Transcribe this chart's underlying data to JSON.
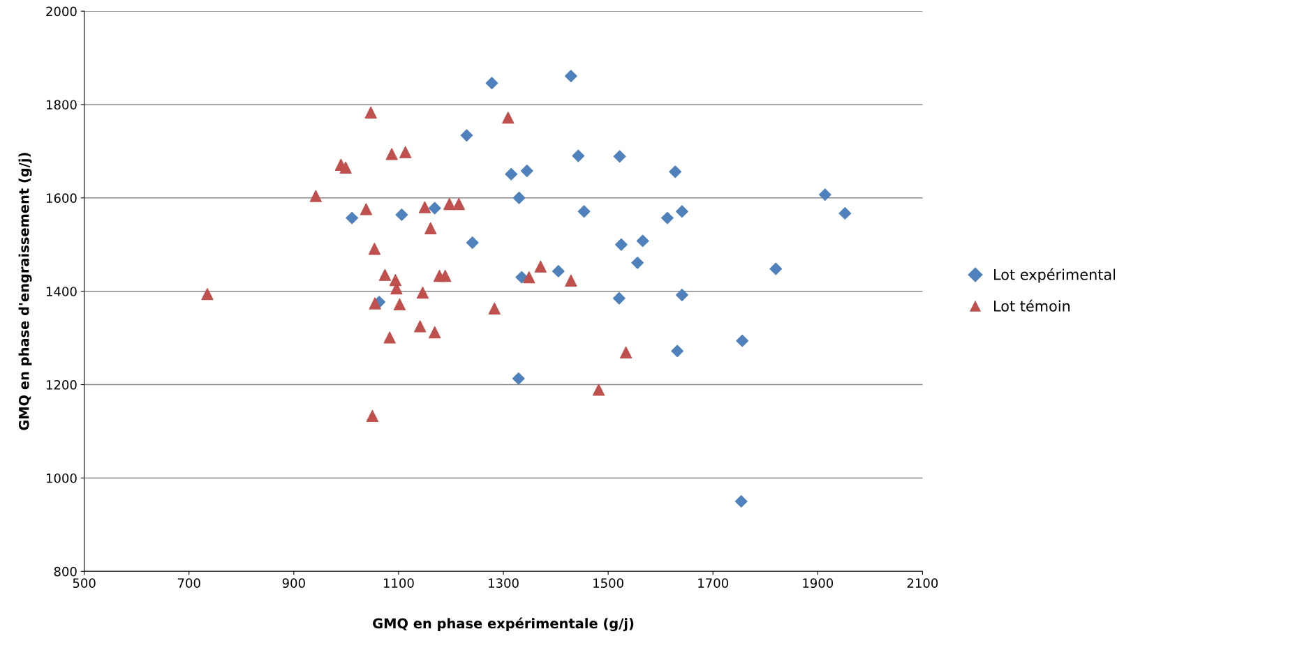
{
  "chart_data": {
    "type": "scatter",
    "xlabel": "GMQ en phase expérimentale (g/j)",
    "ylabel": "GMQ en phase d'engraissement (g/j)",
    "xlim": [
      500,
      2100
    ],
    "xticks": [
      500,
      700,
      900,
      1100,
      1300,
      1500,
      1700,
      1900,
      2100
    ],
    "ylim": [
      800,
      2000
    ],
    "yticks": [
      800,
      1000,
      1200,
      1400,
      1600,
      1800,
      2000
    ],
    "grid": "y",
    "legend": "right",
    "series": [
      {
        "name": "Lot expérimental",
        "color": "#4f81bd",
        "marker": "diamond",
        "x": [
          1278,
          1429,
          1230,
          1443,
          1522,
          1315,
          1345,
          1628,
          1330,
          1169,
          1106,
          1011,
          1454,
          1613,
          1641,
          1914,
          1952,
          1241,
          1525,
          1566,
          1556,
          1335,
          1405,
          1820,
          1521,
          1641,
          1063,
          1756,
          1632,
          1329,
          1754
        ],
        "values": [
          1846,
          1861,
          1734,
          1690,
          1689,
          1651,
          1658,
          1656,
          1600,
          1578,
          1564,
          1557,
          1571,
          1557,
          1571,
          1607,
          1567,
          1504,
          1500,
          1508,
          1461,
          1430,
          1443,
          1448,
          1385,
          1392,
          1377,
          1294,
          1272,
          1213,
          950
        ]
      },
      {
        "name": "Lot témoin",
        "color": "#c0504d",
        "marker": "triangle",
        "x": [
          735,
          942,
          990,
          999,
          1047,
          1038,
          1087,
          1113,
          1309,
          1054,
          1150,
          1161,
          1197,
          1215,
          1074,
          1094,
          1096,
          1055,
          1102,
          1146,
          1178,
          1189,
          1083,
          1141,
          1169,
          1283,
          1349,
          1371,
          1429,
          1534,
          1482,
          1050
        ],
        "values": [
          1394,
          1604,
          1671,
          1665,
          1783,
          1576,
          1694,
          1698,
          1772,
          1491,
          1580,
          1535,
          1587,
          1587,
          1435,
          1424,
          1406,
          1374,
          1372,
          1397,
          1433,
          1433,
          1301,
          1325,
          1312,
          1363,
          1430,
          1453,
          1423,
          1269,
          1189,
          1133
        ]
      }
    ]
  }
}
